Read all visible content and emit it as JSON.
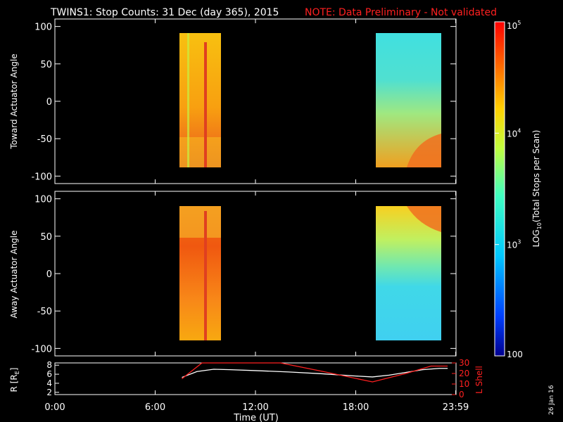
{
  "title": {
    "main": "TWINS1: Stop Counts: 31 Dec (day 365), 2015",
    "note": "NOTE: Data Preliminary - Not validated"
  },
  "stamp": "26 Jan 16",
  "colors": {
    "background": "#000000",
    "axis": "#ffffff",
    "note": "#ff2020",
    "lshell": "#ff2020",
    "radius": "#ffffff"
  },
  "chart_data": [
    {
      "type": "heatmap",
      "panel": "top",
      "ylabel": "Toward Actuator Angle",
      "ylim": [
        -110,
        110
      ],
      "yticks": [
        100,
        50,
        0,
        -50,
        -100
      ],
      "xlim": [
        0,
        24
      ],
      "blocks": [
        {
          "t_start": 7.6,
          "t_end": 10.0,
          "angle_min": -88,
          "angle_max": 90,
          "dominant_log_counts": 4.3
        },
        {
          "t_start": 19.1,
          "t_end": 23.5,
          "angle_min": -88,
          "angle_max": 90,
          "dominant_log_counts": 3.6
        }
      ]
    },
    {
      "type": "heatmap",
      "panel": "middle",
      "ylabel": "Away Actuator Angle",
      "ylim": [
        -110,
        110
      ],
      "yticks": [
        100,
        50,
        0,
        -50,
        -100
      ],
      "xlim": [
        0,
        24
      ],
      "blocks": [
        {
          "t_start": 7.6,
          "t_end": 10.0,
          "angle_min": -88,
          "angle_max": 90,
          "dominant_log_counts": 4.5
        },
        {
          "t_start": 19.1,
          "t_end": 23.5,
          "angle_min": -88,
          "angle_max": 90,
          "dominant_log_counts": 3.4
        }
      ]
    },
    {
      "type": "line",
      "panel": "bottom",
      "xlabel": "Time (UT)",
      "xlim": [
        0,
        24
      ],
      "xtick_labels": [
        "0:00",
        "6:00",
        "12:00",
        "18:00",
        "23:59"
      ],
      "xtick_values": [
        0,
        6,
        12,
        18,
        23.98
      ],
      "left_axis": {
        "label": "R [RE]",
        "ylim": [
          1.5,
          8.5
        ],
        "yticks": [
          2,
          4,
          6,
          8
        ]
      },
      "right_axis": {
        "label": "L Shell",
        "ylim": [
          0,
          30
        ],
        "yticks": [
          0,
          10,
          20,
          30
        ]
      },
      "series": [
        {
          "axis": "left",
          "x": [
            7.6,
            8.5,
            9.5,
            10.5,
            12.0,
            14.0,
            16.0,
            18.0,
            19.0,
            20.0,
            21.0,
            22.0,
            23.0,
            23.5
          ],
          "y": [
            5.3,
            6.6,
            7.1,
            7.0,
            6.8,
            6.5,
            6.1,
            5.6,
            5.4,
            5.8,
            6.4,
            7.0,
            7.3,
            7.3
          ]
        },
        {
          "axis": "right",
          "x": [
            7.6,
            8.8,
            13.5,
            16.0,
            19.0,
            21.0,
            22.5,
            23.5
          ],
          "y": [
            15,
            30,
            30,
            22,
            12,
            20,
            27,
            27
          ]
        }
      ]
    },
    {
      "type": "colorbar",
      "label": "LOG10(Total Stops per Scan)",
      "scale": "log",
      "tick_labels": [
        "10^5",
        "10^4",
        "10^3",
        "100"
      ],
      "tick_values": [
        100000,
        10000,
        1000,
        100
      ],
      "tick_label_parts": [
        {
          "base": "10",
          "exp": "5"
        },
        {
          "base": "10",
          "exp": "4"
        },
        {
          "base": "10",
          "exp": "3"
        },
        {
          "base": "100",
          "exp": ""
        }
      ],
      "label_parts": {
        "prefix": "LOG",
        "sub": "10",
        "rest": "(Total Stops per Scan)"
      },
      "range_log": [
        2,
        5
      ]
    }
  ],
  "labels": {
    "bottom_left_ylabel_main": "R [R",
    "bottom_left_ylabel_sub": "E",
    "bottom_left_ylabel_close": "]",
    "bottom_right_ylabel": "L Shell",
    "xlabel": "Time (UT)"
  }
}
